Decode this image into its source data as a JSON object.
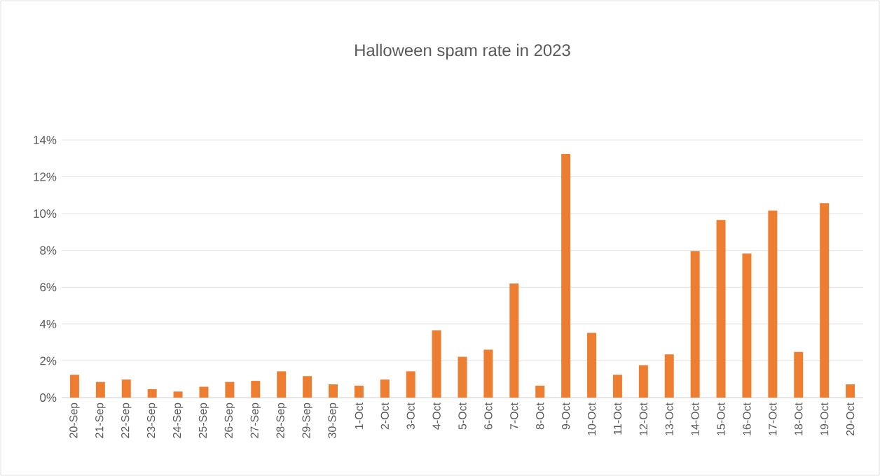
{
  "chart_data": {
    "type": "bar",
    "title": "Halloween spam rate in 2023",
    "categories": [
      "20-Sep",
      "21-Sep",
      "22-Sep",
      "23-Sep",
      "24-Sep",
      "25-Sep",
      "26-Sep",
      "27-Sep",
      "28-Sep",
      "29-Sep",
      "30-Sep",
      "1-Oct",
      "2-Oct",
      "3-Oct",
      "4-Oct",
      "5-Oct",
      "6-Oct",
      "7-Oct",
      "8-Oct",
      "9-Oct",
      "10-Oct",
      "11-Oct",
      "12-Oct",
      "13-Oct",
      "14-Oct",
      "15-Oct",
      "16-Oct",
      "17-Oct",
      "18-Oct",
      "19-Oct",
      "20-Oct"
    ],
    "values": [
      1.24,
      0.85,
      0.98,
      0.46,
      0.33,
      0.59,
      0.85,
      0.91,
      1.43,
      1.17,
      0.72,
      0.65,
      0.98,
      1.43,
      3.65,
      2.22,
      2.61,
      6.2,
      0.65,
      13.24,
      3.52,
      1.24,
      1.76,
      2.35,
      7.96,
      9.65,
      7.83,
      10.17,
      2.48,
      10.57,
      0.72
    ],
    "color": "#ed7d31",
    "ylim": [
      0,
      14
    ],
    "yticks": [
      {
        "value": 0,
        "label": "0%"
      },
      {
        "value": 2,
        "label": "2%"
      },
      {
        "value": 4,
        "label": "4%"
      },
      {
        "value": 6,
        "label": "6%"
      },
      {
        "value": 8,
        "label": "8%"
      },
      {
        "value": 10,
        "label": "10%"
      },
      {
        "value": 12,
        "label": "12%"
      },
      {
        "value": 14,
        "label": "14%"
      }
    ],
    "grid": "y"
  }
}
